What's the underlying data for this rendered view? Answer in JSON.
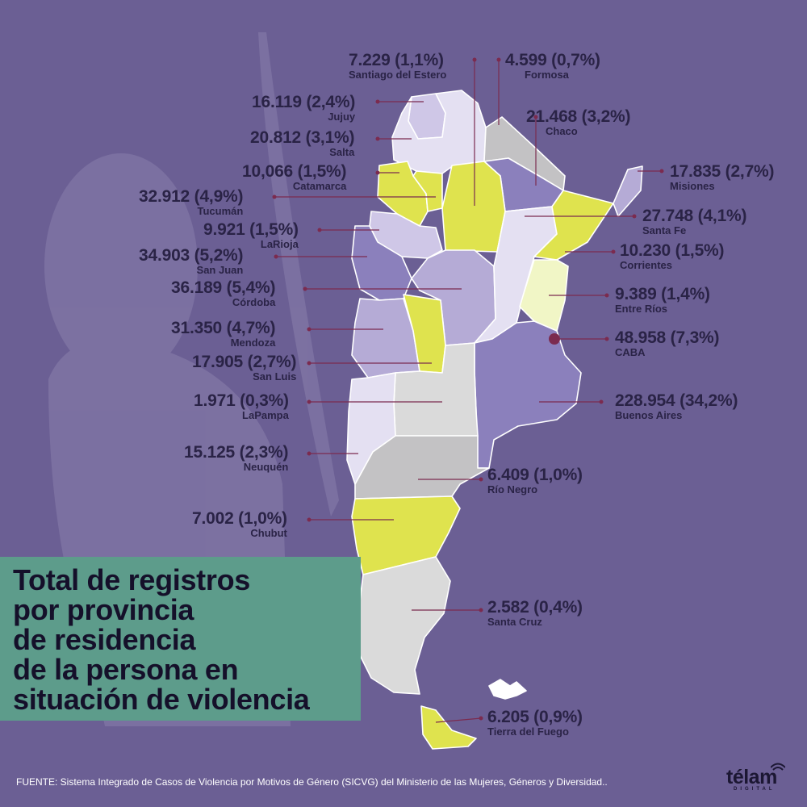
{
  "title": "Total de registros\npor provincia\nde residencia\nde la persona en\nsituación de violencia",
  "source": "FUENTE: Sistema Integrado de Casos de Violencia por Motivos de Género (SICVG) del Ministerio de las Mujeres, Géneros y Diversidad..",
  "logo": {
    "word": "télam",
    "sub": "DIGITAL"
  },
  "colors": {
    "background": "#6b5f94",
    "leader": "#7b2b4f",
    "title_box": "#5d9c8b",
    "level_yellow": "#dfe34e",
    "level_pale_yellow": "#f1f6c6",
    "level_light_gray": "#dadada",
    "level_dark_gray": "#c3c2c4",
    "level_lavender": "#e4e0f2",
    "level_light_purple": "#cfc7e7",
    "level_mid_purple": "#b5abd6",
    "level_purple": "#8b80bc"
  },
  "provinces": [
    {
      "name": "Santiago del Estero",
      "value": "7.229 (1,1%)"
    },
    {
      "name": "Formosa",
      "value": "4.599 (0,7%)"
    },
    {
      "name": "Jujuy",
      "value": "16.119 (2,4%)"
    },
    {
      "name": "Chaco",
      "value": "21.468 (3,2%)"
    },
    {
      "name": "Salta",
      "value": "20.812 (3,1%)"
    },
    {
      "name": "Catamarca",
      "value": "10,066 (1,5%)"
    },
    {
      "name": "Misiones",
      "value": "17.835 (2,7%)"
    },
    {
      "name": "Tucumán",
      "value": "32.912 (4,9%)"
    },
    {
      "name": "Santa Fe",
      "value": "27.748 (4,1%)"
    },
    {
      "name": "LaRioja",
      "value": "9.921 (1,5%)"
    },
    {
      "name": "Corrientes",
      "value": "10.230 (1,5%)"
    },
    {
      "name": "San Juan",
      "value": "34.903 (5,2%)"
    },
    {
      "name": "Córdoba",
      "value": "36.189 (5,4%)"
    },
    {
      "name": "Entre Ríos",
      "value": "9.389 (1,4%)"
    },
    {
      "name": "Mendoza",
      "value": "31.350 (4,7%)"
    },
    {
      "name": "CABA",
      "value": "48.958 (7,3%)"
    },
    {
      "name": "San Luis",
      "value": "17.905 (2,7%)"
    },
    {
      "name": "LaPampa",
      "value": "1.971 (0,3%)"
    },
    {
      "name": "Buenos Aires",
      "value": "228.954 (34,2%)"
    },
    {
      "name": "Neuquén",
      "value": "15.125 (2,3%)"
    },
    {
      "name": "Río Negro",
      "value": "6.409 (1,0%)"
    },
    {
      "name": "Chubut",
      "value": "7.002 (1,0%)"
    },
    {
      "name": "Santa Cruz",
      "value": "2.582 (0,4%)"
    },
    {
      "name": "Tierra del Fuego",
      "value": "6.205 (0,9%)"
    }
  ]
}
